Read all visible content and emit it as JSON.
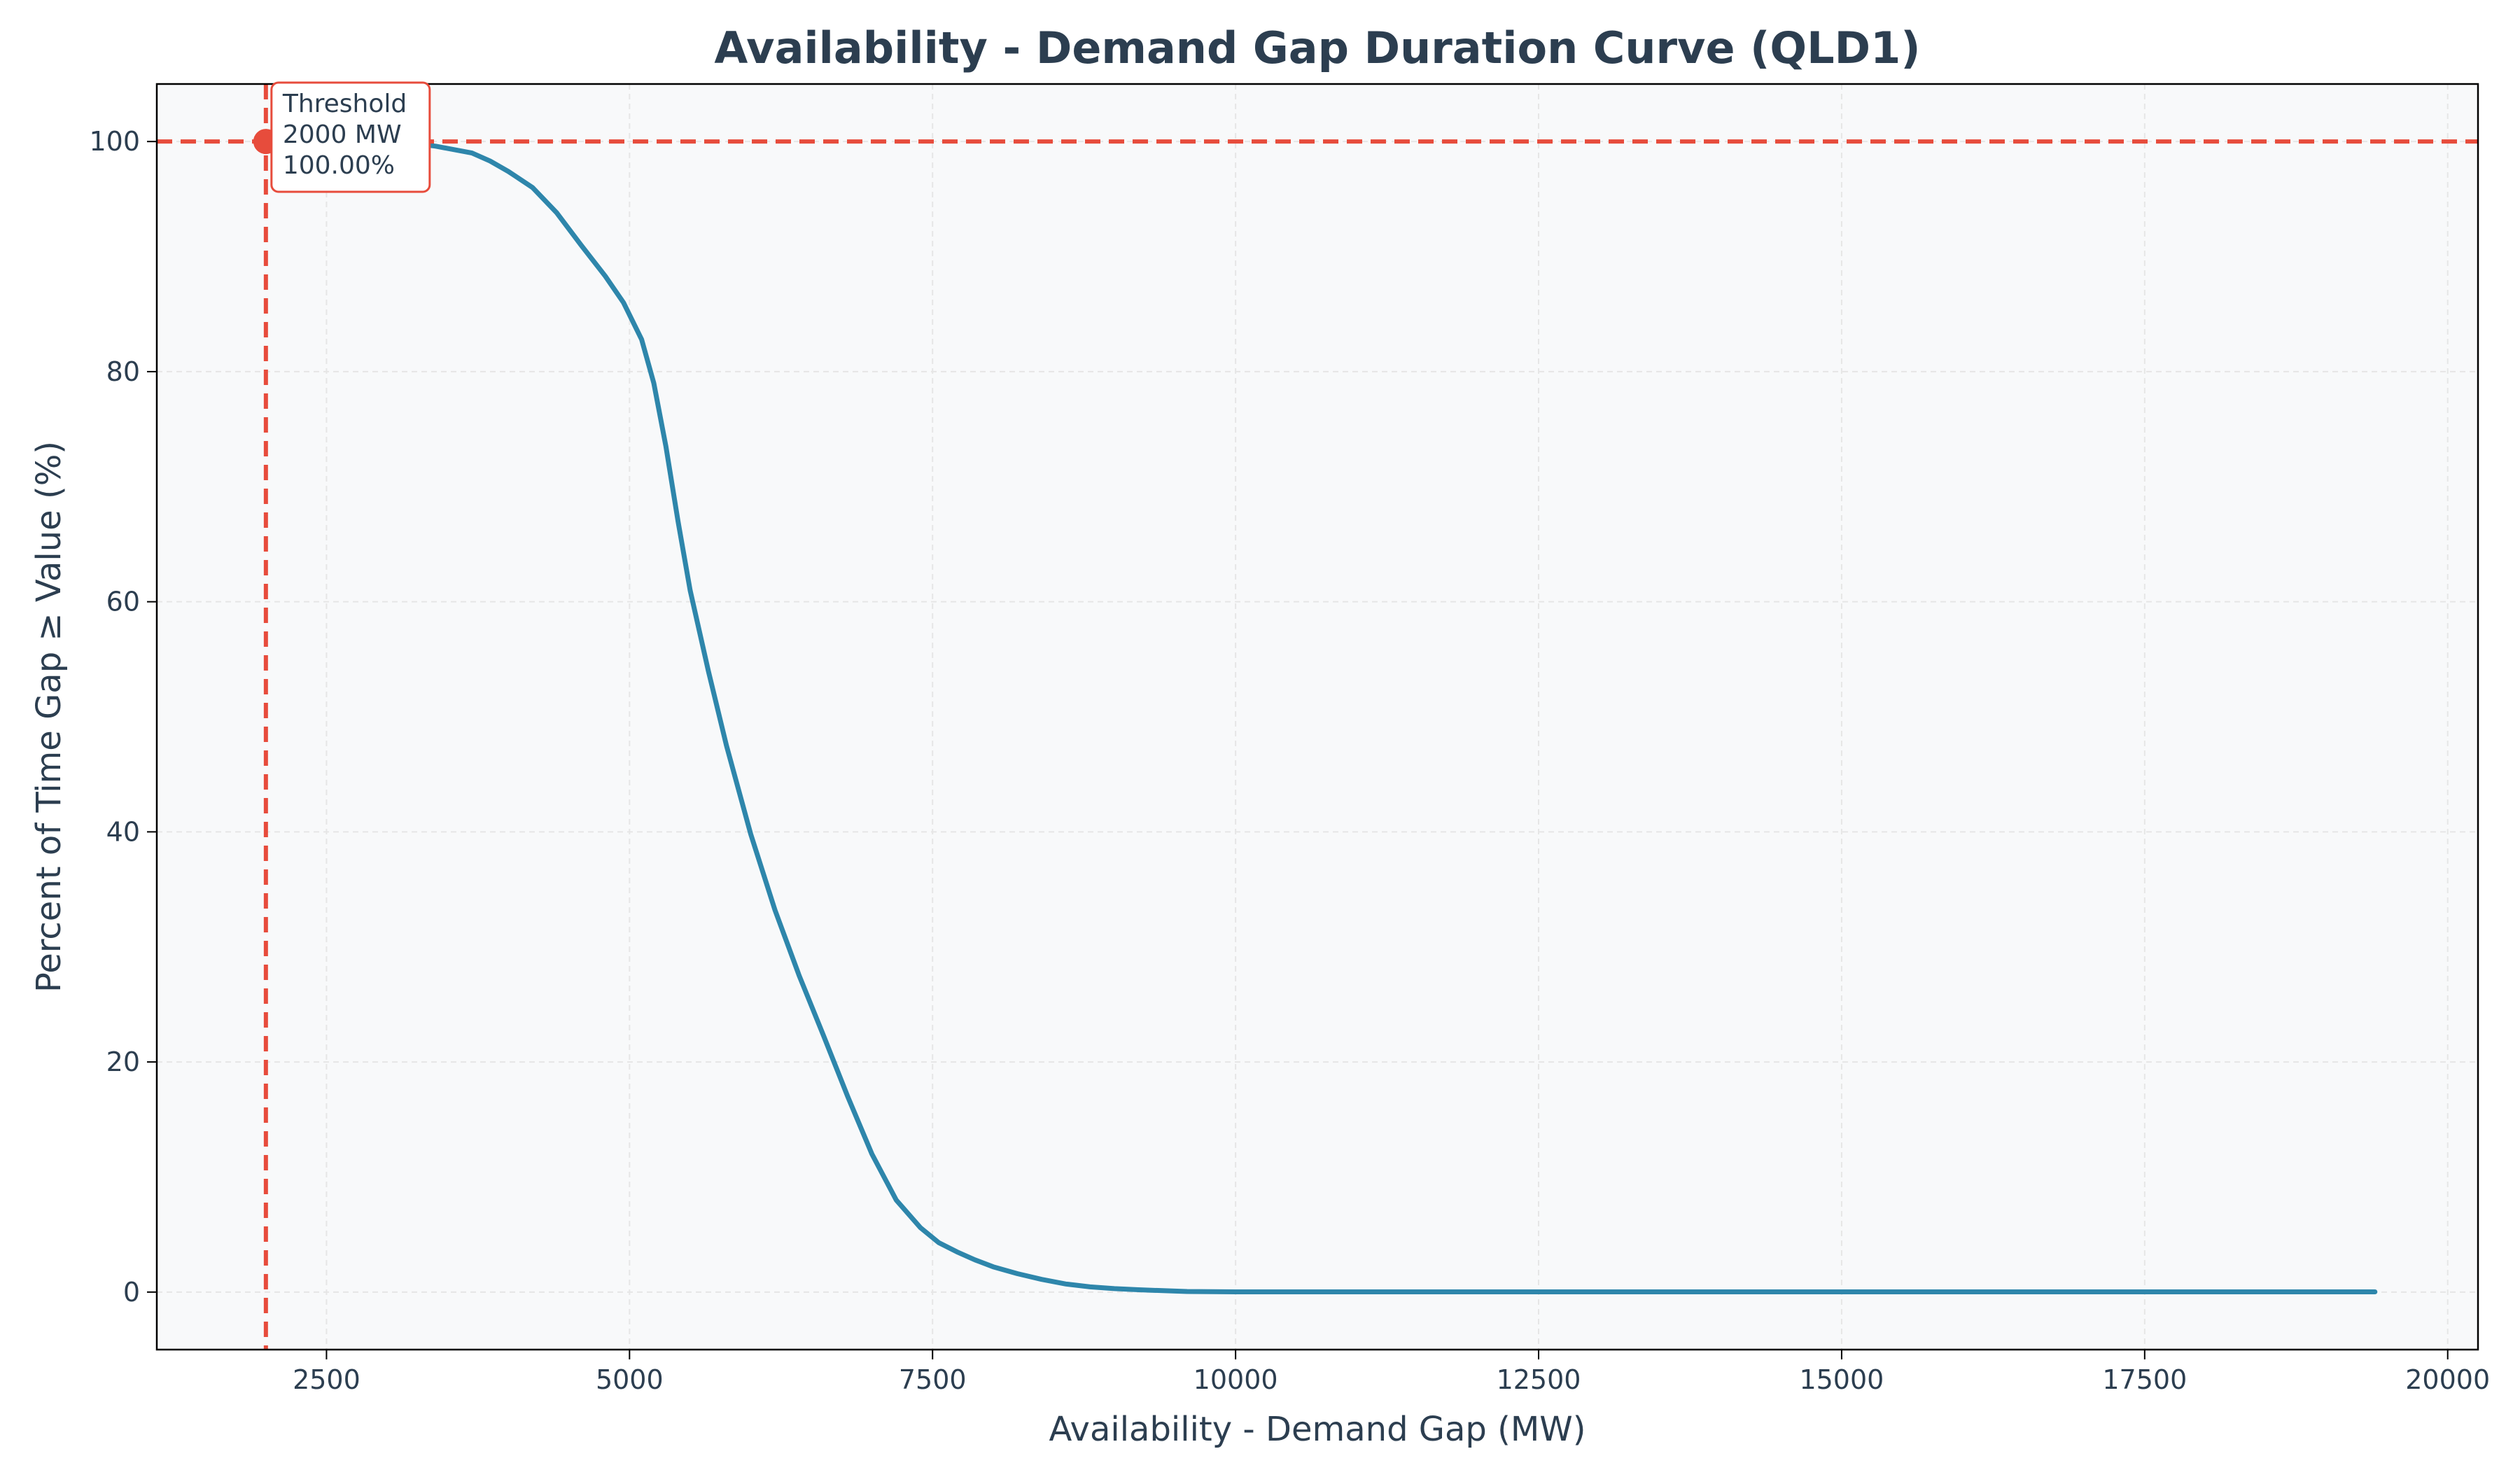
{
  "chart_data": {
    "type": "line",
    "title": "Availability - Demand Gap Duration Curve (QLD1)",
    "xlabel": "Availability - Demand Gap (MW)",
    "ylabel": "Percent of Time Gap ≥ Value (%)",
    "xlim": [
      1100,
      20250
    ],
    "ylim": [
      -5,
      105
    ],
    "xticks": [
      2500,
      5000,
      7500,
      10000,
      12500,
      15000,
      17500,
      20000
    ],
    "yticks": [
      0,
      20,
      40,
      60,
      80,
      100
    ],
    "grid": true,
    "legend": "none",
    "colors": {
      "line": "#2e86ab",
      "threshold": "#e74c3c",
      "text": "#2c3e50",
      "plot_bg": "#f8f9fa"
    },
    "series": [
      {
        "x": [
          3100,
          3400,
          3700,
          3850,
          4000,
          4200,
          4400,
          4600,
          4800,
          4950,
          5100,
          5200,
          5300,
          5400,
          5500,
          5650,
          5800,
          6000,
          6200,
          6400,
          6600,
          6800,
          7000,
          7200,
          7400,
          7550,
          7700,
          7850,
          8000,
          8200,
          8400,
          8600,
          8800,
          9000,
          9200,
          9400,
          9600,
          9800,
          10000,
          11000,
          12000,
          13000,
          14000,
          15000,
          16000,
          17000,
          18000,
          19000,
          19400
        ],
        "y": [
          100,
          99.6,
          99.0,
          98.3,
          97.4,
          96.0,
          93.8,
          91.0,
          88.3,
          86.0,
          82.8,
          79.0,
          73.5,
          67.0,
          61.0,
          54.0,
          47.5,
          39.8,
          33.2,
          27.5,
          22.3,
          17.0,
          12.0,
          8.0,
          5.6,
          4.3,
          3.5,
          2.8,
          2.2,
          1.6,
          1.1,
          0.7,
          0.45,
          0.3,
          0.2,
          0.12,
          0.05,
          0.03,
          0.02,
          0.02,
          0.02,
          0.02,
          0.02,
          0.02,
          0.02,
          0.02,
          0.02,
          0.02,
          0.02
        ]
      }
    ],
    "threshold": {
      "x": 2000,
      "y": 100,
      "label_lines": [
        "Threshold",
        "2000 MW",
        "100.00%"
      ]
    }
  }
}
